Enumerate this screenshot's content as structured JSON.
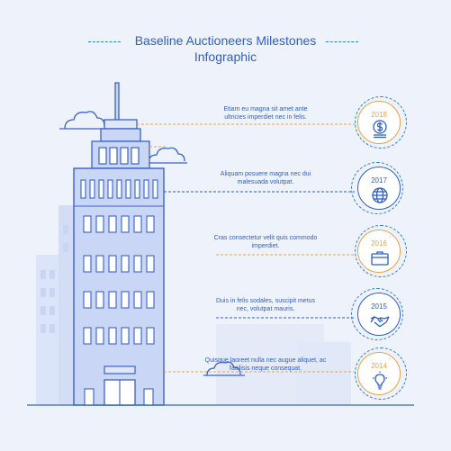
{
  "header": {
    "title_line1": "Baseline Auctioneers Milestones",
    "title_line2": "Infographic"
  },
  "colors": {
    "background": "#eef2fb",
    "primary_blue": "#2f5fc4",
    "accent_orange": "#e8a445",
    "building_fill": "#c9d6f5",
    "building_stroke": "#3a62c9"
  },
  "milestones": [
    {
      "year": "2018",
      "text_line1": "Etiam eu magna sit amet ante",
      "text_line2": "ultricies imperdiet nec in felis.",
      "icon": "dollar-coins-icon",
      "accent": "orange"
    },
    {
      "year": "2017",
      "text_line1": "Aliquam posuere magna nec dui",
      "text_line2": "malesuada volutpat.",
      "icon": "globe-icon",
      "accent": "blue"
    },
    {
      "year": "2016",
      "text_line1": "Cras consectetur velit quis commodo",
      "text_line2": "imperdiet.",
      "icon": "briefcase-icon",
      "accent": "orange"
    },
    {
      "year": "2015",
      "text_line1": "Duis in felis sodales, suscipit metus",
      "text_line2": "nec, volutpat mauris.",
      "icon": "handshake-icon",
      "accent": "blue"
    },
    {
      "year": "2014",
      "text_line1": "Quisque laoreet nulla nec augue aliquet, ac",
      "text_line2": "facilisis neque consequat.",
      "icon": "lightbulb-icon",
      "accent": "orange"
    }
  ]
}
